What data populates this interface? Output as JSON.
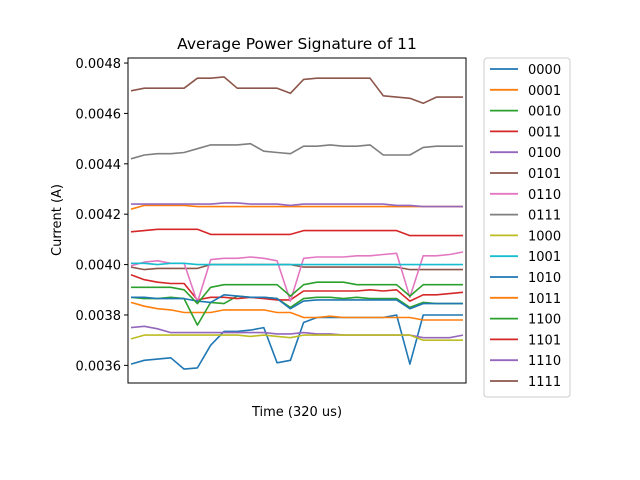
{
  "chart_data": {
    "type": "line",
    "title": "Average Power Signature of 11",
    "xlabel": "Time (320 us)",
    "ylabel": "Current (A)",
    "ylim": [
      0.00353,
      0.00482
    ],
    "y_ticks": [
      0.0036,
      0.0038,
      0.004,
      0.0042,
      0.0044,
      0.0046,
      0.0048
    ],
    "y_tick_labels": [
      "0.0036",
      "0.0038",
      "0.0040",
      "0.0042",
      "0.0044",
      "0.0046",
      "0.0048"
    ],
    "x_ticks": [],
    "grid": false,
    "legend_position": "outside-right",
    "series": [
      {
        "name": "0000",
        "color": "#1f77b4",
        "x": [
          0,
          4,
          8,
          12,
          16,
          20,
          24,
          28,
          32,
          36,
          40,
          44,
          48,
          52,
          56,
          60,
          64,
          68,
          72,
          76,
          80,
          84,
          88,
          92,
          96,
          100
        ],
        "values": [
          0.003605,
          0.00362,
          0.003625,
          0.00363,
          0.003585,
          0.00359,
          0.00368,
          0.003735,
          0.003735,
          0.00374,
          0.00375,
          0.00361,
          0.00362,
          0.00377,
          0.00379,
          0.00379,
          0.00379,
          0.00379,
          0.00379,
          0.00379,
          0.0038,
          0.003605,
          0.0038,
          0.0038,
          0.0038,
          0.0038
        ]
      },
      {
        "name": "0001",
        "color": "#ff7f0e",
        "x": [
          0,
          4,
          8,
          12,
          16,
          20,
          24,
          28,
          32,
          36,
          40,
          44,
          48,
          52,
          56,
          60,
          64,
          68,
          72,
          76,
          80,
          84,
          88,
          92,
          96,
          100
        ],
        "values": [
          0.00385,
          0.003835,
          0.003825,
          0.00382,
          0.00381,
          0.00381,
          0.00381,
          0.00382,
          0.00382,
          0.00382,
          0.00382,
          0.00381,
          0.00381,
          0.00379,
          0.00379,
          0.003795,
          0.00379,
          0.00379,
          0.00379,
          0.00379,
          0.00379,
          0.00379,
          0.00378,
          0.00378,
          0.00378,
          0.00378
        ]
      },
      {
        "name": "0010",
        "color": "#2ca02c",
        "x": [
          0,
          4,
          8,
          12,
          16,
          20,
          24,
          28,
          32,
          36,
          40,
          44,
          48,
          52,
          56,
          60,
          64,
          68,
          72,
          76,
          80,
          84,
          88,
          92,
          96,
          100
        ],
        "values": [
          0.00387,
          0.003865,
          0.003865,
          0.00387,
          0.003865,
          0.00376,
          0.00385,
          0.003845,
          0.003875,
          0.00387,
          0.00387,
          0.003865,
          0.00383,
          0.003865,
          0.00387,
          0.00387,
          0.003865,
          0.00387,
          0.003865,
          0.003865,
          0.003865,
          0.00383,
          0.00385,
          0.003845,
          0.003845,
          0.003845
        ]
      },
      {
        "name": "0011",
        "color": "#d62728",
        "x": [
          0,
          4,
          8,
          12,
          16,
          20,
          24,
          28,
          32,
          36,
          40,
          44,
          48,
          52,
          56,
          60,
          64,
          68,
          72,
          76,
          80,
          84,
          88,
          92,
          96,
          100
        ],
        "values": [
          0.00396,
          0.00394,
          0.00393,
          0.003925,
          0.003925,
          0.00386,
          0.00387,
          0.00387,
          0.003865,
          0.00387,
          0.003865,
          0.00386,
          0.00386,
          0.003895,
          0.003895,
          0.003895,
          0.003895,
          0.003895,
          0.0039,
          0.003895,
          0.0039,
          0.003855,
          0.00388,
          0.00388,
          0.003885,
          0.00389
        ]
      },
      {
        "name": "0100",
        "color": "#9467bd",
        "x": [
          0,
          4,
          8,
          12,
          16,
          20,
          24,
          28,
          32,
          36,
          40,
          44,
          48,
          52,
          56,
          60,
          64,
          68,
          72,
          76,
          80,
          84,
          88,
          92,
          96,
          100
        ],
        "values": [
          0.00375,
          0.003755,
          0.003745,
          0.00373,
          0.00373,
          0.00373,
          0.00373,
          0.00373,
          0.00373,
          0.00373,
          0.00373,
          0.003725,
          0.003725,
          0.00373,
          0.003725,
          0.003725,
          0.00372,
          0.00372,
          0.00372,
          0.00372,
          0.00372,
          0.00372,
          0.00371,
          0.00371,
          0.00371,
          0.00372
        ]
      },
      {
        "name": "0101",
        "color": "#8c564b",
        "x": [
          0,
          4,
          8,
          12,
          16,
          20,
          24,
          28,
          32,
          36,
          40,
          44,
          48,
          52,
          56,
          60,
          64,
          68,
          72,
          76,
          80,
          84,
          88,
          92,
          96,
          100
        ],
        "values": [
          0.00399,
          0.00398,
          0.003985,
          0.003985,
          0.003985,
          0.003985,
          0.004,
          0.004,
          0.004,
          0.004,
          0.004,
          0.004,
          0.004,
          0.00399,
          0.00399,
          0.00399,
          0.00399,
          0.00399,
          0.00399,
          0.00399,
          0.00399,
          0.00398,
          0.00398,
          0.00398,
          0.00398,
          0.00398
        ]
      },
      {
        "name": "0110",
        "color": "#e377c2",
        "x": [
          0,
          4,
          8,
          12,
          16,
          20,
          24,
          28,
          32,
          36,
          40,
          44,
          48,
          52,
          56,
          60,
          64,
          68,
          72,
          76,
          80,
          84,
          88,
          92,
          96,
          100
        ],
        "values": [
          0.003995,
          0.00401,
          0.004015,
          0.004005,
          0.004005,
          0.00385,
          0.00402,
          0.004025,
          0.004025,
          0.00403,
          0.004025,
          0.004015,
          0.003855,
          0.004025,
          0.00403,
          0.00403,
          0.00403,
          0.004035,
          0.004035,
          0.00404,
          0.004045,
          0.00387,
          0.004035,
          0.004035,
          0.00404,
          0.00405
        ]
      },
      {
        "name": "0111",
        "color": "#7f7f7f",
        "x": [
          0,
          4,
          8,
          12,
          16,
          20,
          24,
          28,
          32,
          36,
          40,
          44,
          48,
          52,
          56,
          60,
          64,
          68,
          72,
          76,
          80,
          84,
          88,
          92,
          96,
          100
        ],
        "values": [
          0.00442,
          0.004435,
          0.00444,
          0.00444,
          0.004445,
          0.00446,
          0.004475,
          0.004475,
          0.004475,
          0.00448,
          0.00445,
          0.004445,
          0.00444,
          0.00447,
          0.00447,
          0.004475,
          0.00447,
          0.00447,
          0.004475,
          0.004435,
          0.004435,
          0.004435,
          0.004465,
          0.00447,
          0.00447,
          0.00447
        ]
      },
      {
        "name": "1000",
        "color": "#bcbd22",
        "x": [
          0,
          4,
          8,
          12,
          16,
          20,
          24,
          28,
          32,
          36,
          40,
          44,
          48,
          52,
          56,
          60,
          64,
          68,
          72,
          76,
          80,
          84,
          88,
          92,
          96,
          100
        ],
        "values": [
          0.003705,
          0.00372,
          0.00372,
          0.00372,
          0.00372,
          0.00372,
          0.00372,
          0.00372,
          0.00372,
          0.003715,
          0.00372,
          0.003715,
          0.00371,
          0.00372,
          0.00372,
          0.00372,
          0.00372,
          0.00372,
          0.00372,
          0.00372,
          0.00372,
          0.00372,
          0.0037,
          0.0037,
          0.0037,
          0.0037
        ]
      },
      {
        "name": "1001",
        "color": "#17becf",
        "x": [
          0,
          4,
          8,
          12,
          16,
          20,
          24,
          28,
          32,
          36,
          40,
          44,
          48,
          52,
          56,
          60,
          64,
          68,
          72,
          76,
          80,
          84,
          88,
          92,
          96,
          100
        ],
        "values": [
          0.004005,
          0.004005,
          0.004,
          0.004005,
          0.004005,
          0.004,
          0.004,
          0.004,
          0.004,
          0.004,
          0.004,
          0.004,
          0.004,
          0.004,
          0.004,
          0.004,
          0.004,
          0.004,
          0.004,
          0.004,
          0.004,
          0.004,
          0.004,
          0.004,
          0.004,
          0.004
        ]
      },
      {
        "name": "1010",
        "color": "#1f77b4",
        "x": [
          0,
          4,
          8,
          12,
          16,
          20,
          24,
          28,
          32,
          36,
          40,
          44,
          48,
          52,
          56,
          60,
          64,
          68,
          72,
          76,
          80,
          84,
          88,
          92,
          96,
          100
        ],
        "values": [
          0.00387,
          0.00387,
          0.003865,
          0.003865,
          0.003865,
          0.003855,
          0.00385,
          0.00388,
          0.003875,
          0.00387,
          0.00387,
          0.003865,
          0.003825,
          0.003855,
          0.00386,
          0.00386,
          0.00386,
          0.00386,
          0.00386,
          0.00386,
          0.00386,
          0.003825,
          0.003845,
          0.003845,
          0.003845,
          0.003845
        ]
      },
      {
        "name": "1011",
        "color": "#ff7f0e",
        "x": [
          0,
          4,
          8,
          12,
          16,
          20,
          24,
          28,
          32,
          36,
          40,
          44,
          48,
          52,
          56,
          60,
          64,
          68,
          72,
          76,
          80,
          84,
          88,
          92,
          96,
          100
        ],
        "values": [
          0.00422,
          0.004235,
          0.004235,
          0.004235,
          0.004235,
          0.00423,
          0.00423,
          0.00423,
          0.00423,
          0.00423,
          0.00423,
          0.00423,
          0.00423,
          0.00423,
          0.00423,
          0.00423,
          0.00423,
          0.00423,
          0.00423,
          0.00423,
          0.00423,
          0.00423,
          0.00423,
          0.00423,
          0.00423,
          0.00423
        ]
      },
      {
        "name": "1100",
        "color": "#2ca02c",
        "x": [
          0,
          4,
          8,
          12,
          16,
          20,
          24,
          28,
          32,
          36,
          40,
          44,
          48,
          52,
          56,
          60,
          64,
          68,
          72,
          76,
          80,
          84,
          88,
          92,
          96,
          100
        ],
        "values": [
          0.00391,
          0.00391,
          0.00391,
          0.00391,
          0.0039,
          0.003845,
          0.00391,
          0.00392,
          0.00392,
          0.00392,
          0.00392,
          0.00392,
          0.003875,
          0.00392,
          0.00393,
          0.00393,
          0.00393,
          0.00392,
          0.00392,
          0.00392,
          0.00392,
          0.003875,
          0.00392,
          0.00392,
          0.00392,
          0.00392
        ]
      },
      {
        "name": "1101",
        "color": "#d62728",
        "x": [
          0,
          4,
          8,
          12,
          16,
          20,
          24,
          28,
          32,
          36,
          40,
          44,
          48,
          52,
          56,
          60,
          64,
          68,
          72,
          76,
          80,
          84,
          88,
          92,
          96,
          100
        ],
        "values": [
          0.00413,
          0.004135,
          0.00414,
          0.00414,
          0.00414,
          0.00414,
          0.00412,
          0.00412,
          0.00412,
          0.00412,
          0.00412,
          0.00412,
          0.00412,
          0.004135,
          0.004135,
          0.004135,
          0.004135,
          0.004135,
          0.004135,
          0.004135,
          0.004135,
          0.004115,
          0.004115,
          0.004115,
          0.004115,
          0.004115
        ]
      },
      {
        "name": "1110",
        "color": "#9467bd",
        "x": [
          0,
          4,
          8,
          12,
          16,
          20,
          24,
          28,
          32,
          36,
          40,
          44,
          48,
          52,
          56,
          60,
          64,
          68,
          72,
          76,
          80,
          84,
          88,
          92,
          96,
          100
        ],
        "values": [
          0.00424,
          0.00424,
          0.00424,
          0.00424,
          0.00424,
          0.00424,
          0.00424,
          0.004245,
          0.004245,
          0.00424,
          0.00424,
          0.00424,
          0.004235,
          0.00424,
          0.00424,
          0.00424,
          0.00424,
          0.00424,
          0.00424,
          0.00424,
          0.004235,
          0.004235,
          0.00423,
          0.00423,
          0.00423,
          0.00423
        ]
      },
      {
        "name": "1111",
        "color": "#8c564b",
        "x": [
          0,
          4,
          8,
          12,
          16,
          20,
          24,
          28,
          32,
          36,
          40,
          44,
          48,
          52,
          56,
          60,
          64,
          68,
          72,
          76,
          80,
          84,
          88,
          92,
          96,
          100
        ],
        "values": [
          0.00469,
          0.0047,
          0.0047,
          0.0047,
          0.0047,
          0.00474,
          0.00474,
          0.004745,
          0.0047,
          0.0047,
          0.0047,
          0.0047,
          0.00468,
          0.004735,
          0.00474,
          0.00474,
          0.00474,
          0.00474,
          0.00474,
          0.00467,
          0.004665,
          0.00466,
          0.00464,
          0.004665,
          0.004665,
          0.004665
        ]
      }
    ]
  }
}
